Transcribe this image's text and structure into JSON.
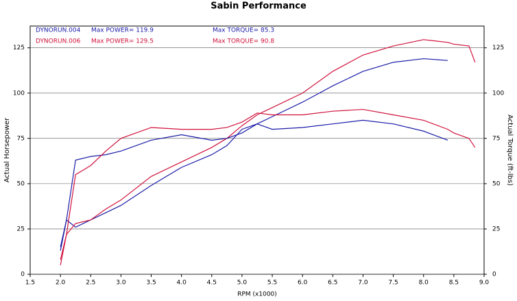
{
  "chart_data": {
    "type": "line",
    "title": "Sabin Performance",
    "x_label": "RPM (x1000)",
    "y_label": "Actual Horsepower",
    "y2_label": "Actual Torque (ft-lbs)",
    "x": [
      2.0,
      2.1,
      2.25,
      2.5,
      2.75,
      3.0,
      3.5,
      4.0,
      4.5,
      4.75,
      5.0,
      5.25,
      5.5,
      6.0,
      6.5,
      7.0,
      7.5,
      8.0,
      8.4,
      8.5,
      8.75,
      8.85
    ],
    "series": [
      {
        "color": "#1a1aa8",
        "values": [
          13,
          30,
          26,
          30,
          34,
          38,
          49,
          59,
          66,
          71,
          80,
          83,
          87,
          95,
          104,
          112,
          117,
          119,
          118,
          null,
          null,
          null
        ]
      },
      {
        "color": "#d0103a",
        "values": [
          5,
          22,
          28,
          30,
          36,
          41,
          54,
          62,
          70,
          75,
          82,
          88,
          92,
          100,
          112,
          121,
          126,
          129.5,
          128,
          127,
          126,
          117
        ]
      },
      {
        "color": "#1a1aa8",
        "axis": "y2",
        "values": [
          15,
          30,
          63,
          65,
          66,
          68,
          74,
          77,
          74,
          75,
          78,
          83,
          80,
          81,
          83,
          85,
          83,
          79,
          74,
          null,
          null,
          null
        ]
      },
      {
        "color": "#d0103a",
        "axis": "y2",
        "values": [
          8,
          22,
          55,
          60,
          68,
          75,
          81,
          80,
          80,
          81,
          84,
          89,
          88,
          88,
          90,
          91,
          88,
          85,
          80,
          78,
          75,
          70
        ]
      }
    ],
    "legend": [
      {
        "run": "DYNORUN.004",
        "power": "Max POWER= 119.9",
        "torque": "Max TORQUE= 85.3",
        "color": "#1a1aa8"
      },
      {
        "run": "DYNORUN.006",
        "power": "Max POWER= 129.5",
        "torque": "Max TORQUE= 90.8",
        "color": "#d0103a"
      }
    ],
    "xlim": [
      1.5,
      9.0
    ],
    "xticks": [
      {
        "value": 1.5,
        "label": "1.5"
      },
      {
        "value": 2,
        "label": "2.0"
      },
      {
        "value": 2.5,
        "label": "2.5"
      },
      {
        "value": 3,
        "label": "3.0"
      },
      {
        "value": 3.5,
        "label": "3.5"
      },
      {
        "value": 4,
        "label": "4.0"
      },
      {
        "value": 4.5,
        "label": "4.5"
      },
      {
        "value": 5,
        "label": "5.0"
      },
      {
        "value": 5.5,
        "label": "5.5"
      },
      {
        "value": 6,
        "label": "6.0"
      },
      {
        "value": 6.5,
        "label": "6.5"
      },
      {
        "value": 7,
        "label": "7.0"
      },
      {
        "value": 7.5,
        "label": "7.5"
      },
      {
        "value": 8,
        "label": "8.0"
      },
      {
        "value": 8.5,
        "label": "8.5"
      },
      {
        "value": 9,
        "label": "9.0"
      }
    ],
    "ylim": [
      0,
      137
    ],
    "yticks": [
      0,
      25,
      50,
      75,
      100,
      125
    ],
    "y2lim": [
      0,
      137
    ],
    "y2ticks": [
      0,
      25,
      50,
      75,
      100,
      125
    ],
    "grid": true
  }
}
